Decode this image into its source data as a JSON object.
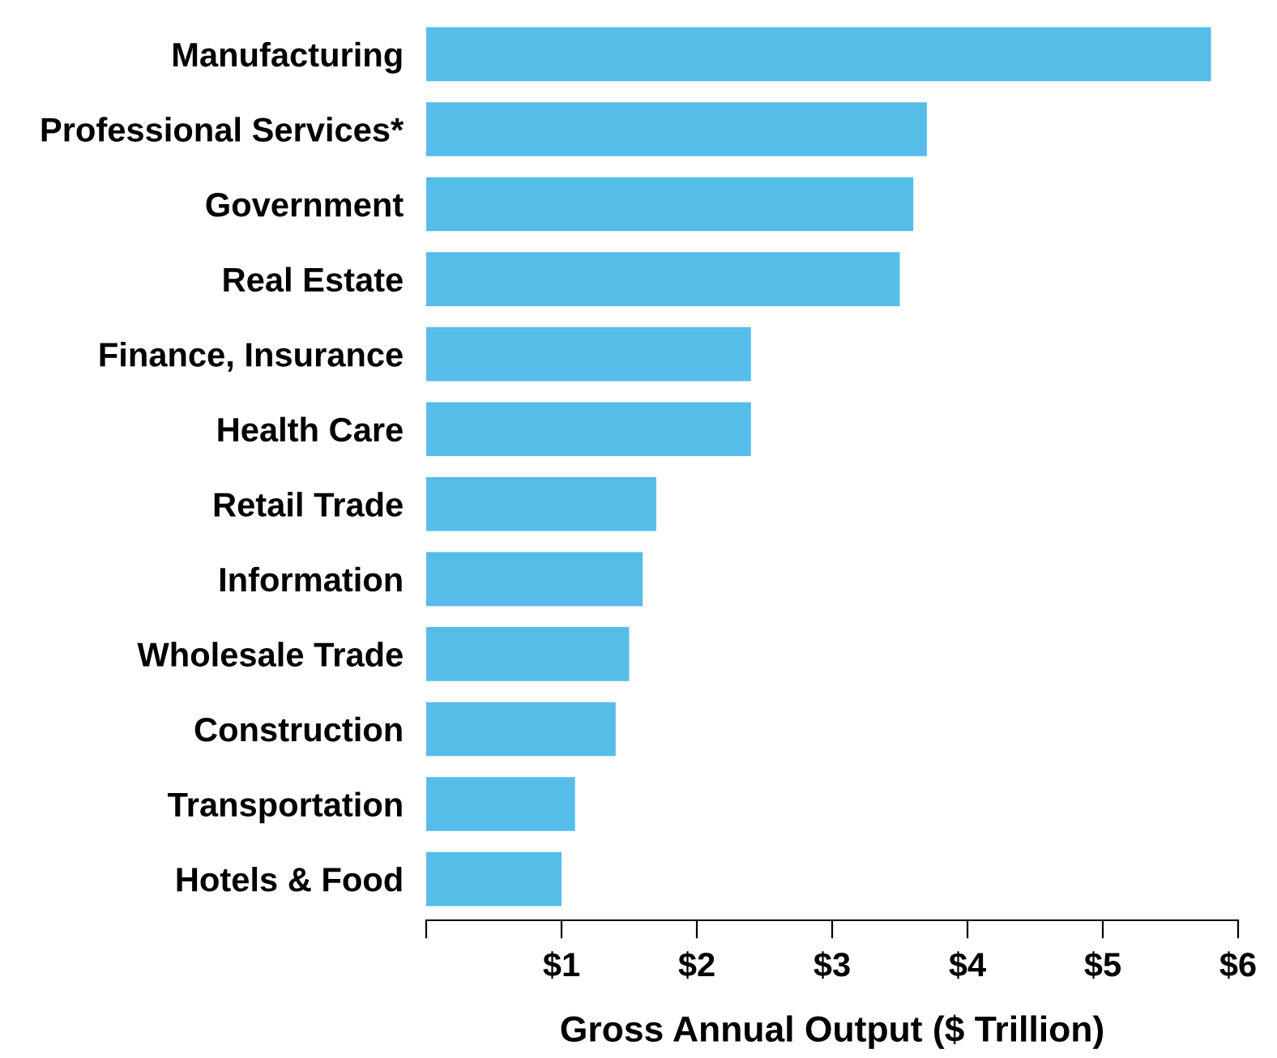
{
  "chart_data": {
    "type": "bar",
    "orientation": "horizontal",
    "xlabel": "Gross Annual Output ($ Trillion)",
    "categories": [
      "Manufacturing",
      "Professional Services*",
      "Government",
      "Real Estate",
      "Finance, Insurance",
      "Health Care",
      "Retail Trade",
      "Information",
      "Wholesale Trade",
      "Construction",
      "Transportation",
      "Hotels & Food"
    ],
    "values": [
      5.8,
      3.7,
      3.6,
      3.5,
      2.4,
      2.4,
      1.7,
      1.6,
      1.5,
      1.4,
      1.1,
      1.0
    ],
    "color": "#56bde9",
    "xlim": [
      0,
      6
    ],
    "xticks": [
      {
        "value": 0,
        "label": null
      },
      {
        "value": 1,
        "label": "$1"
      },
      {
        "value": 2,
        "label": "$2"
      },
      {
        "value": 3,
        "label": "$3"
      },
      {
        "value": 4,
        "label": "$4"
      },
      {
        "value": 5,
        "label": "$5"
      },
      {
        "value": 6,
        "label": "$6"
      }
    ],
    "grid": false,
    "legend": false
  }
}
